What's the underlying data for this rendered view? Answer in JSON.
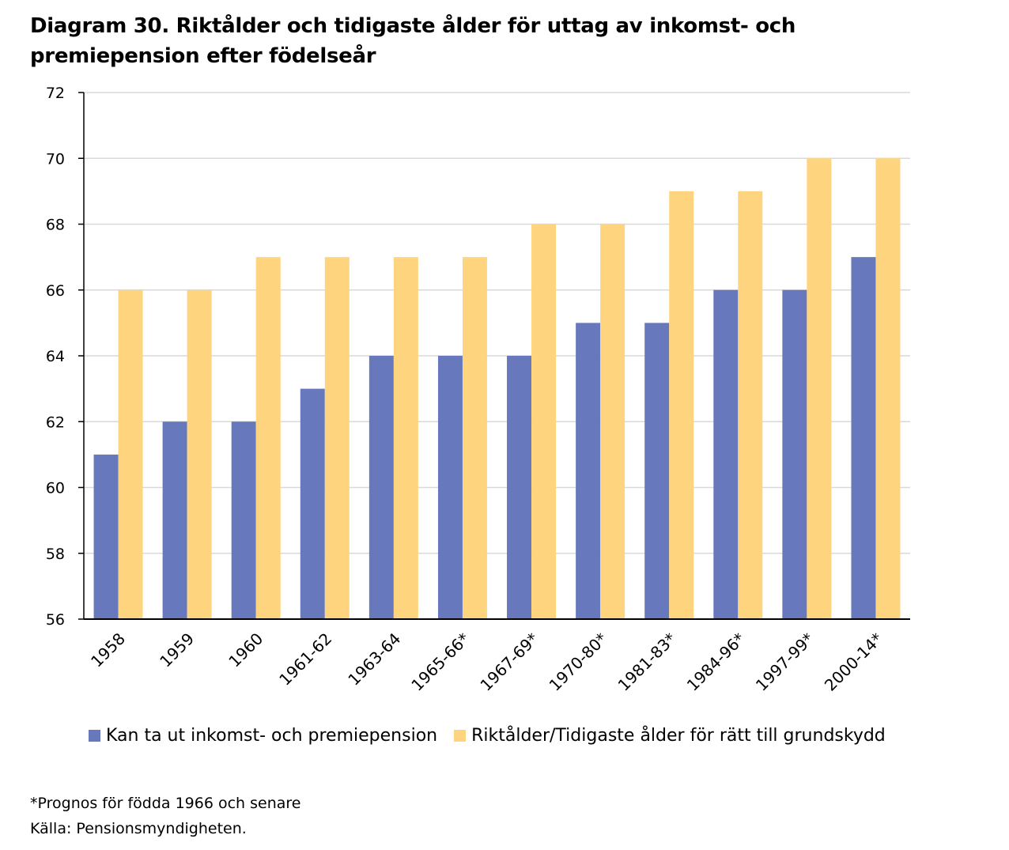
{
  "title": "Diagram 30. Riktålder och tidigaste ålder för uttag av inkomst- och premiepension efter födelseår",
  "footnote": "*Prognos för födda 1966 och senare",
  "source": "Källa: Pensionsmyndigheten.",
  "colors": {
    "series1": "#6779BC",
    "series2": "#FFD47F",
    "grid": "#D9D9D9",
    "axis": "#000000"
  },
  "chart_data": {
    "type": "bar",
    "categories": [
      "1958",
      "1959",
      "1960",
      "1961-62",
      "1963-64",
      "1965-66*",
      "1967-69*",
      "1970-80*",
      "1981-83*",
      "1984-96*",
      "1997-99*",
      "2000-14*"
    ],
    "series": [
      {
        "name": "Kan ta ut inkomst- och premiepension",
        "values": [
          61,
          62,
          62,
          63,
          64,
          64,
          64,
          65,
          65,
          66,
          66,
          67
        ]
      },
      {
        "name": "Riktålder/Tidigaste ålder för rätt till grundskydd",
        "values": [
          66,
          66,
          67,
          67,
          67,
          67,
          68,
          68,
          69,
          69,
          70,
          70
        ]
      }
    ],
    "ylim": [
      56,
      72
    ],
    "yticks": [
      56,
      58,
      60,
      62,
      64,
      66,
      68,
      70,
      72
    ],
    "grid": true,
    "legend": "bottom"
  }
}
